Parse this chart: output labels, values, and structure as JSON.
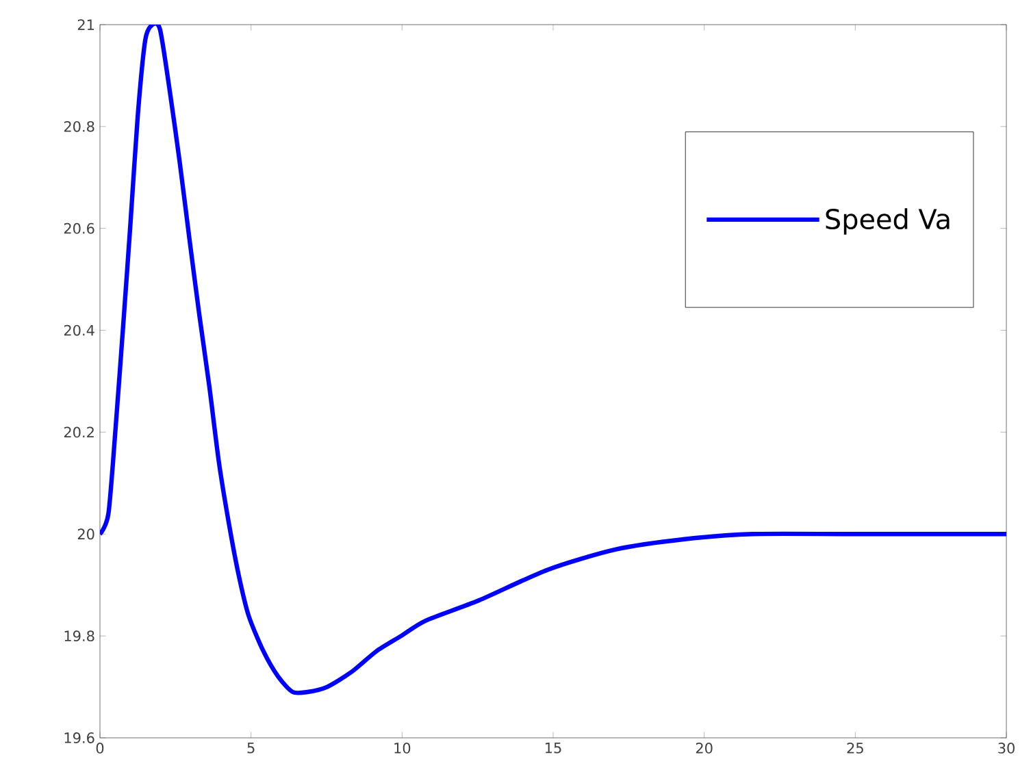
{
  "chart_data": {
    "type": "line",
    "x": [
      0,
      0.28,
      0.52,
      0.77,
      1.01,
      1.25,
      1.5,
      1.74,
      1.99,
      2.31,
      2.64,
      2.96,
      3.29,
      3.62,
      3.94,
      4.27,
      4.59,
      4.92,
      5.41,
      5.9,
      6.38,
      6.87,
      7.52,
      8.34,
      9.15,
      9.97,
      10.78,
      12.55,
      14.82,
      17.08,
      19.35,
      21.6,
      25,
      30
    ],
    "series": [
      {
        "name": "Speed Va",
        "color": "#0000ff",
        "values": [
          20,
          20.04,
          20.21,
          20.41,
          20.61,
          20.82,
          20.97,
          21.0,
          20.99,
          20.87,
          20.73,
          20.58,
          20.43,
          20.29,
          20.14,
          20.02,
          19.92,
          19.84,
          19.77,
          19.72,
          19.69,
          19.69,
          19.7,
          19.73,
          19.77,
          19.8,
          19.83,
          19.87,
          19.93,
          19.97,
          19.99,
          20.0,
          20.0,
          20.0
        ]
      }
    ],
    "xlim": [
      0,
      30
    ],
    "ylim": [
      19.6,
      21
    ],
    "xticks": [
      0,
      5,
      10,
      15,
      20,
      25,
      30
    ],
    "yticks": [
      19.6,
      19.8,
      20,
      20.2,
      20.4,
      20.6,
      20.8,
      21
    ],
    "legend": "top right",
    "grid": false,
    "marker": "none",
    "line_style": "solid"
  }
}
